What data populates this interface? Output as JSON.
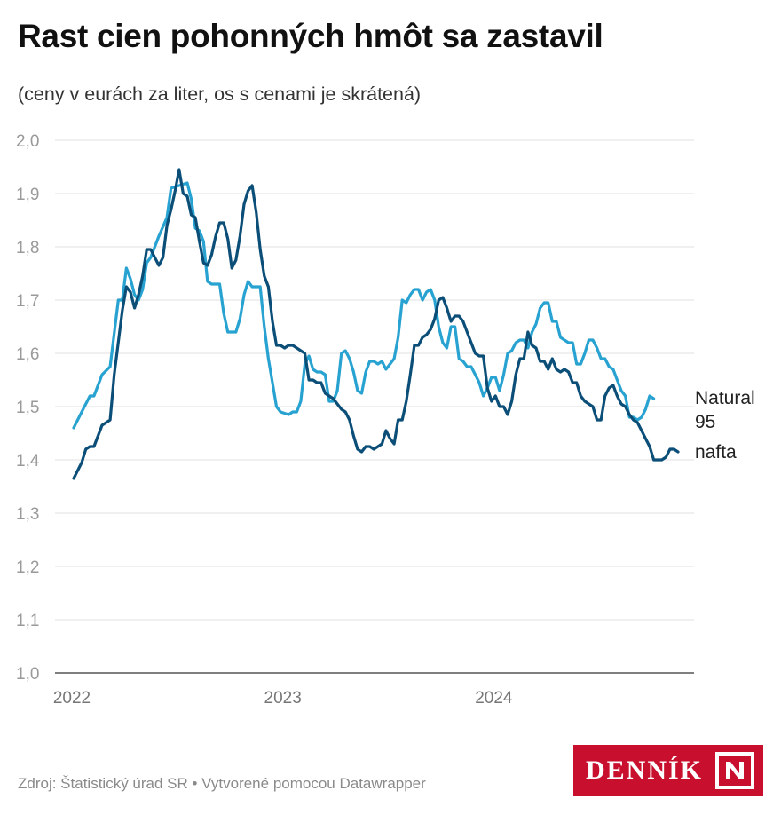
{
  "header": {
    "title": "Rast cien pohonných hmôt sa zastavil",
    "subtitle": "(ceny v eurách za liter, os s cenami je skrátená)"
  },
  "footer": {
    "source": "Zdroj: Štatistický úrad SR • Vytvorené pomocou Datawrapper",
    "logo_text": "DENNÍK"
  },
  "colors": {
    "natural95": "#27a2d1",
    "nafta": "#0b4e78",
    "grid": "#e2e2e2",
    "tick_text": "#9a9a9a",
    "brand": "#c8102e"
  },
  "chart_data": {
    "type": "line",
    "title": "Rast cien pohonných hmôt sa zastavil",
    "subtitle": "(ceny v eurách za liter, os s cenami je skrátená)",
    "xlabel": "",
    "ylabel": "",
    "ylim": [
      1.0,
      2.0
    ],
    "yticks": [
      "1,0",
      "1,1",
      "1,2",
      "1,3",
      "1,4",
      "1,5",
      "1,6",
      "1,7",
      "1,8",
      "1,9",
      "2,0"
    ],
    "xticks": [
      {
        "label": "2022",
        "week": 1
      },
      {
        "label": "2023",
        "week": 53
      },
      {
        "label": "2024",
        "week": 105
      }
    ],
    "grid": true,
    "legend": "direct labels at line ends",
    "x_unit": "week number counted from first week of 2022",
    "series": [
      {
        "name": "Natural 95",
        "label_lines": [
          "Natural",
          "95"
        ],
        "color": "#27a2d1",
        "points": [
          [
            1,
            1.46
          ],
          [
            3,
            1.49
          ],
          [
            5,
            1.52
          ],
          [
            6,
            1.52
          ],
          [
            8,
            1.56
          ],
          [
            10,
            1.575
          ],
          [
            12,
            1.7
          ],
          [
            13,
            1.7
          ],
          [
            14,
            1.76
          ],
          [
            15,
            1.74
          ],
          [
            16,
            1.71
          ],
          [
            17,
            1.7
          ],
          [
            18,
            1.72
          ],
          [
            19,
            1.77
          ],
          [
            20,
            1.78
          ],
          [
            22,
            1.82
          ],
          [
            24,
            1.855
          ],
          [
            25,
            1.91
          ],
          [
            27,
            1.915
          ],
          [
            29,
            1.92
          ],
          [
            30,
            1.89
          ],
          [
            31,
            1.835
          ],
          [
            32,
            1.83
          ],
          [
            33,
            1.81
          ],
          [
            34,
            1.735
          ],
          [
            35,
            1.73
          ],
          [
            37,
            1.73
          ],
          [
            38,
            1.675
          ],
          [
            39,
            1.64
          ],
          [
            41,
            1.64
          ],
          [
            42,
            1.665
          ],
          [
            43,
            1.71
          ],
          [
            44,
            1.735
          ],
          [
            45,
            1.725
          ],
          [
            47,
            1.725
          ],
          [
            48,
            1.65
          ],
          [
            49,
            1.59
          ],
          [
            50,
            1.545
          ],
          [
            51,
            1.5
          ],
          [
            52,
            1.49
          ],
          [
            54,
            1.485
          ],
          [
            55,
            1.49
          ],
          [
            56,
            1.49
          ],
          [
            57,
            1.51
          ],
          [
            58,
            1.58
          ],
          [
            59,
            1.595
          ],
          [
            60,
            1.57
          ],
          [
            61,
            1.565
          ],
          [
            62,
            1.565
          ],
          [
            63,
            1.56
          ],
          [
            64,
            1.51
          ],
          [
            65,
            1.51
          ],
          [
            66,
            1.53
          ],
          [
            67,
            1.6
          ],
          [
            68,
            1.605
          ],
          [
            69,
            1.59
          ],
          [
            70,
            1.565
          ],
          [
            71,
            1.53
          ],
          [
            72,
            1.525
          ],
          [
            73,
            1.565
          ],
          [
            74,
            1.585
          ],
          [
            75,
            1.585
          ],
          [
            76,
            1.58
          ],
          [
            77,
            1.585
          ],
          [
            78,
            1.57
          ],
          [
            79,
            1.58
          ],
          [
            80,
            1.59
          ],
          [
            81,
            1.63
          ],
          [
            82,
            1.7
          ],
          [
            83,
            1.695
          ],
          [
            84,
            1.71
          ],
          [
            85,
            1.72
          ],
          [
            86,
            1.72
          ],
          [
            87,
            1.7
          ],
          [
            88,
            1.715
          ],
          [
            89,
            1.72
          ],
          [
            90,
            1.7
          ],
          [
            91,
            1.65
          ],
          [
            92,
            1.62
          ],
          [
            93,
            1.61
          ],
          [
            94,
            1.65
          ],
          [
            95,
            1.65
          ],
          [
            96,
            1.59
          ],
          [
            97,
            1.585
          ],
          [
            98,
            1.575
          ],
          [
            99,
            1.575
          ],
          [
            100,
            1.56
          ],
          [
            101,
            1.545
          ],
          [
            102,
            1.52
          ],
          [
            103,
            1.535
          ],
          [
            104,
            1.555
          ],
          [
            105,
            1.555
          ],
          [
            106,
            1.53
          ],
          [
            107,
            1.56
          ],
          [
            108,
            1.6
          ],
          [
            109,
            1.605
          ],
          [
            110,
            1.62
          ],
          [
            111,
            1.625
          ],
          [
            112,
            1.625
          ],
          [
            113,
            1.61
          ],
          [
            114,
            1.64
          ],
          [
            115,
            1.655
          ],
          [
            116,
            1.685
          ],
          [
            117,
            1.695
          ],
          [
            118,
            1.695
          ],
          [
            119,
            1.66
          ],
          [
            120,
            1.66
          ],
          [
            121,
            1.63
          ],
          [
            122,
            1.625
          ],
          [
            123,
            1.62
          ],
          [
            124,
            1.62
          ],
          [
            125,
            1.58
          ],
          [
            126,
            1.58
          ],
          [
            127,
            1.6
          ],
          [
            128,
            1.625
          ],
          [
            129,
            1.625
          ],
          [
            130,
            1.61
          ],
          [
            131,
            1.59
          ],
          [
            132,
            1.59
          ],
          [
            133,
            1.575
          ],
          [
            134,
            1.57
          ],
          [
            135,
            1.55
          ],
          [
            136,
            1.53
          ],
          [
            137,
            1.52
          ],
          [
            138,
            1.48
          ],
          [
            139,
            1.48
          ],
          [
            140,
            1.475
          ],
          [
            141,
            1.48
          ],
          [
            142,
            1.495
          ],
          [
            143,
            1.52
          ],
          [
            144,
            1.515
          ]
        ]
      },
      {
        "name": "nafta",
        "label_lines": [
          "nafta"
        ],
        "color": "#0b4e78",
        "points": [
          [
            1,
            1.365
          ],
          [
            3,
            1.395
          ],
          [
            4,
            1.42
          ],
          [
            5,
            1.425
          ],
          [
            6,
            1.425
          ],
          [
            8,
            1.465
          ],
          [
            9,
            1.47
          ],
          [
            10,
            1.475
          ],
          [
            11,
            1.56
          ],
          [
            13,
            1.68
          ],
          [
            14,
            1.725
          ],
          [
            15,
            1.715
          ],
          [
            16,
            1.685
          ],
          [
            17,
            1.71
          ],
          [
            18,
            1.745
          ],
          [
            19,
            1.795
          ],
          [
            20,
            1.795
          ],
          [
            21,
            1.78
          ],
          [
            22,
            1.765
          ],
          [
            23,
            1.78
          ],
          [
            24,
            1.84
          ],
          [
            25,
            1.87
          ],
          [
            26,
            1.905
          ],
          [
            27,
            1.945
          ],
          [
            28,
            1.9
          ],
          [
            29,
            1.895
          ],
          [
            30,
            1.86
          ],
          [
            31,
            1.855
          ],
          [
            32,
            1.81
          ],
          [
            33,
            1.77
          ],
          [
            34,
            1.765
          ],
          [
            35,
            1.785
          ],
          [
            36,
            1.82
          ],
          [
            37,
            1.845
          ],
          [
            38,
            1.845
          ],
          [
            39,
            1.815
          ],
          [
            40,
            1.76
          ],
          [
            41,
            1.775
          ],
          [
            42,
            1.82
          ],
          [
            43,
            1.88
          ],
          [
            44,
            1.905
          ],
          [
            45,
            1.915
          ],
          [
            46,
            1.865
          ],
          [
            47,
            1.795
          ],
          [
            48,
            1.745
          ],
          [
            49,
            1.725
          ],
          [
            50,
            1.66
          ],
          [
            51,
            1.615
          ],
          [
            52,
            1.615
          ],
          [
            53,
            1.61
          ],
          [
            54,
            1.615
          ],
          [
            55,
            1.615
          ],
          [
            56,
            1.61
          ],
          [
            57,
            1.605
          ],
          [
            58,
            1.6
          ],
          [
            59,
            1.55
          ],
          [
            60,
            1.55
          ],
          [
            61,
            1.545
          ],
          [
            62,
            1.545
          ],
          [
            63,
            1.525
          ],
          [
            64,
            1.52
          ],
          [
            65,
            1.515
          ],
          [
            66,
            1.505
          ],
          [
            67,
            1.495
          ],
          [
            68,
            1.49
          ],
          [
            69,
            1.475
          ],
          [
            70,
            1.445
          ],
          [
            71,
            1.42
          ],
          [
            72,
            1.415
          ],
          [
            73,
            1.425
          ],
          [
            74,
            1.425
          ],
          [
            75,
            1.42
          ],
          [
            76,
            1.425
          ],
          [
            77,
            1.43
          ],
          [
            78,
            1.455
          ],
          [
            79,
            1.44
          ],
          [
            80,
            1.43
          ],
          [
            81,
            1.475
          ],
          [
            82,
            1.475
          ],
          [
            83,
            1.51
          ],
          [
            84,
            1.56
          ],
          [
            85,
            1.615
          ],
          [
            86,
            1.615
          ],
          [
            87,
            1.63
          ],
          [
            88,
            1.635
          ],
          [
            89,
            1.645
          ],
          [
            90,
            1.665
          ],
          [
            91,
            1.7
          ],
          [
            92,
            1.705
          ],
          [
            93,
            1.685
          ],
          [
            94,
            1.66
          ],
          [
            95,
            1.67
          ],
          [
            96,
            1.67
          ],
          [
            97,
            1.66
          ],
          [
            98,
            1.64
          ],
          [
            99,
            1.62
          ],
          [
            100,
            1.6
          ],
          [
            101,
            1.595
          ],
          [
            102,
            1.595
          ],
          [
            103,
            1.535
          ],
          [
            104,
            1.51
          ],
          [
            105,
            1.52
          ],
          [
            106,
            1.5
          ],
          [
            107,
            1.5
          ],
          [
            108,
            1.485
          ],
          [
            109,
            1.51
          ],
          [
            110,
            1.56
          ],
          [
            111,
            1.59
          ],
          [
            112,
            1.59
          ],
          [
            113,
            1.64
          ],
          [
            114,
            1.615
          ],
          [
            115,
            1.61
          ],
          [
            116,
            1.585
          ],
          [
            117,
            1.585
          ],
          [
            118,
            1.57
          ],
          [
            119,
            1.59
          ],
          [
            120,
            1.57
          ],
          [
            121,
            1.565
          ],
          [
            122,
            1.57
          ],
          [
            123,
            1.565
          ],
          [
            124,
            1.545
          ],
          [
            125,
            1.545
          ],
          [
            126,
            1.52
          ],
          [
            127,
            1.51
          ],
          [
            128,
            1.505
          ],
          [
            129,
            1.5
          ],
          [
            130,
            1.475
          ],
          [
            131,
            1.475
          ],
          [
            132,
            1.52
          ],
          [
            133,
            1.535
          ],
          [
            134,
            1.54
          ],
          [
            135,
            1.52
          ],
          [
            136,
            1.505
          ],
          [
            137,
            1.5
          ],
          [
            138,
            1.485
          ],
          [
            139,
            1.475
          ],
          [
            140,
            1.47
          ],
          [
            141,
            1.455
          ],
          [
            142,
            1.44
          ],
          [
            143,
            1.425
          ],
          [
            144,
            1.4
          ],
          [
            145,
            1.4
          ],
          [
            146,
            1.4
          ],
          [
            147,
            1.405
          ],
          [
            148,
            1.42
          ],
          [
            149,
            1.42
          ],
          [
            150,
            1.415
          ]
        ]
      }
    ]
  }
}
